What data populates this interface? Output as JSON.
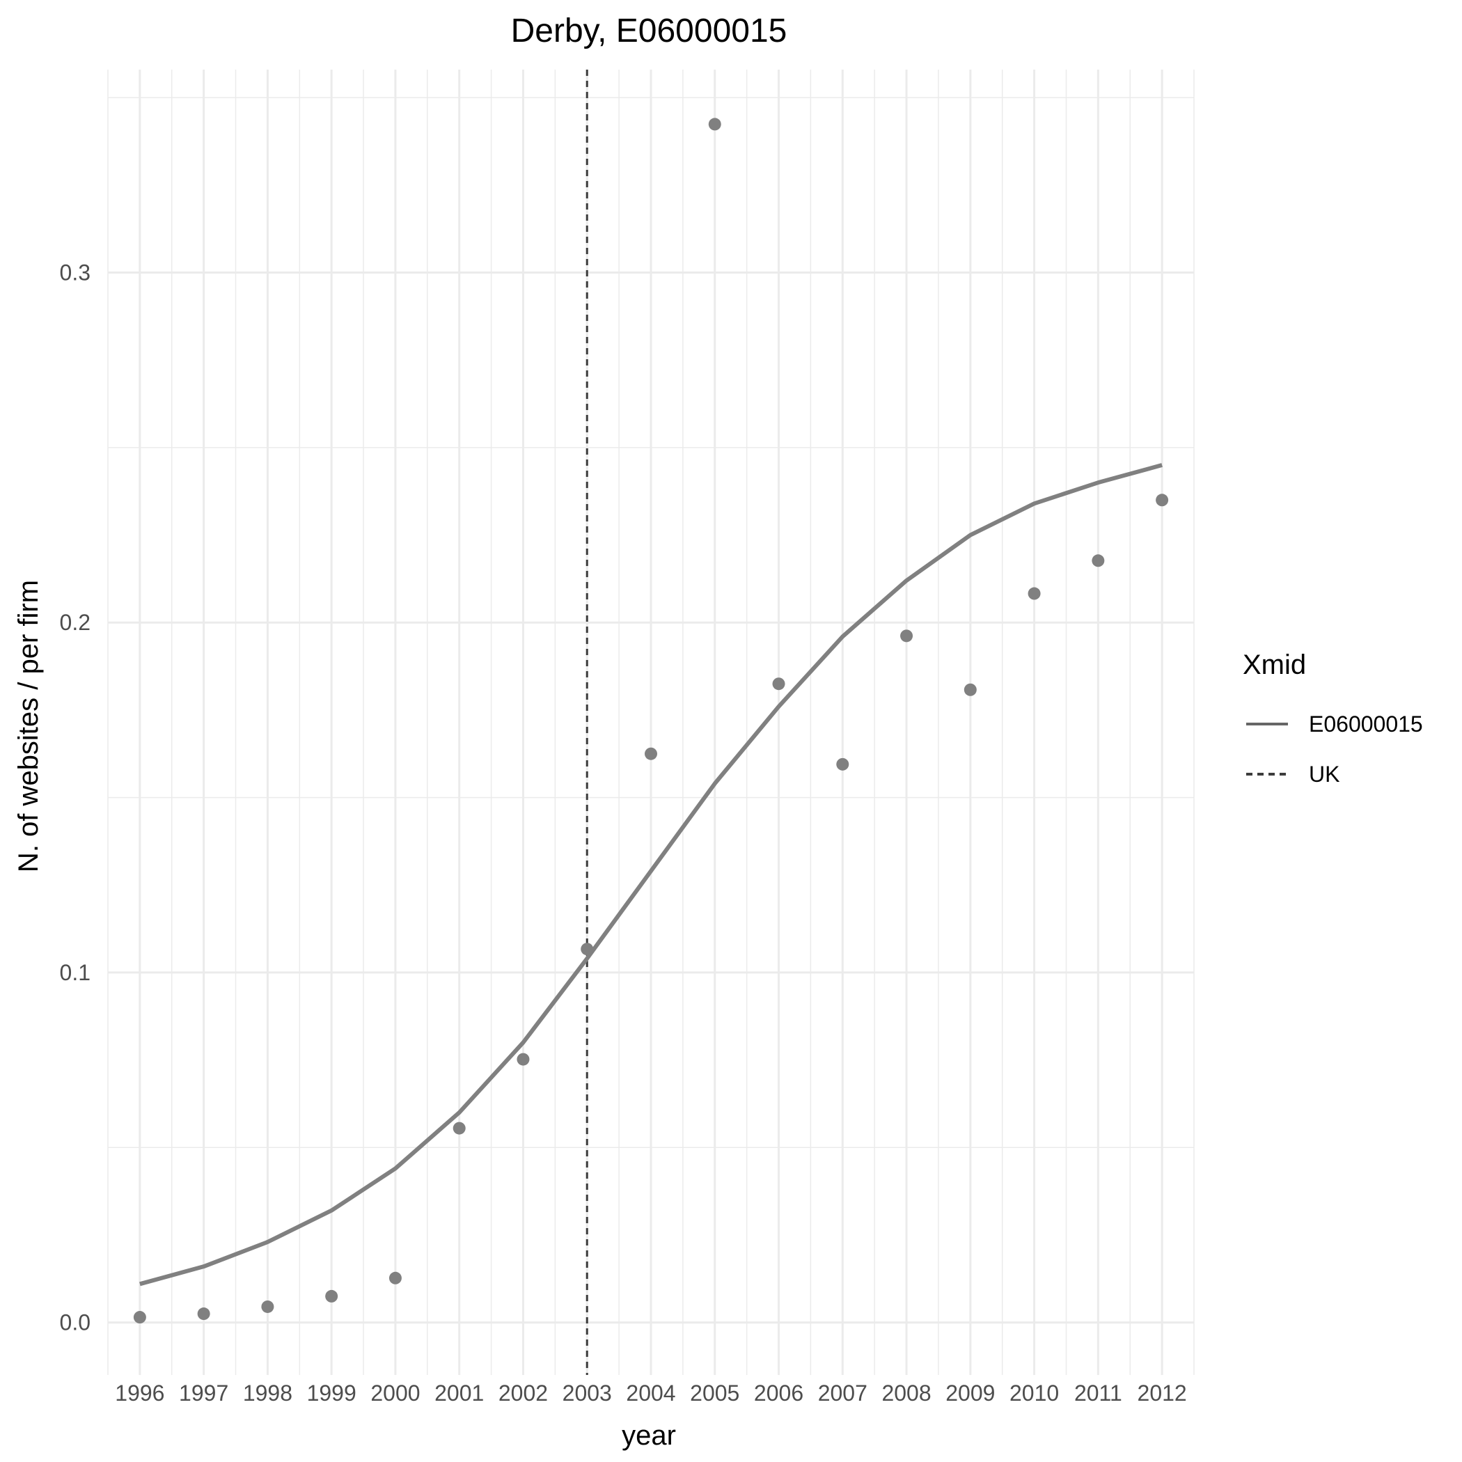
{
  "chart_data": {
    "type": "scatter",
    "title": "Derby, E06000015",
    "xlabel": "year",
    "ylabel": "N. of websites / per firm",
    "x_ticks": [
      "1996",
      "1997",
      "1998",
      "1999",
      "2000",
      "2001",
      "2002",
      "2003",
      "2004",
      "2005",
      "2006",
      "2007",
      "2008",
      "2009",
      "2010",
      "2011",
      "2012"
    ],
    "y_ticks": [
      "0.0",
      "0.1",
      "0.2",
      "0.3"
    ],
    "xlim": [
      1995.5,
      2012.5
    ],
    "ylim": [
      -0.015,
      0.358
    ],
    "grid": true,
    "points": {
      "x": [
        1996,
        1997,
        1998,
        1999,
        2000,
        2001,
        2002,
        2003,
        2004,
        2005,
        2006,
        2007,
        2008,
        2009,
        2010,
        2011,
        2012
      ],
      "y": [
        0.0015,
        0.0025,
        0.0045,
        0.0075,
        0.0127,
        0.0555,
        0.0752,
        0.1067,
        0.1625,
        0.3424,
        0.1825,
        0.1595,
        0.1962,
        0.1808,
        0.2083,
        0.2177,
        0.235
      ]
    },
    "series": [
      {
        "name": "E06000015",
        "style": "solid",
        "x": [
          1996,
          1997,
          1998,
          1999,
          2000,
          2001,
          2002,
          2003,
          2004,
          2005,
          2006,
          2007,
          2008,
          2009,
          2010,
          2011,
          2012
        ],
        "values": [
          0.011,
          0.016,
          0.023,
          0.032,
          0.044,
          0.06,
          0.08,
          0.104,
          0.129,
          0.154,
          0.176,
          0.196,
          0.212,
          0.225,
          0.234,
          0.24,
          0.245
        ]
      },
      {
        "name": "UK",
        "style": "dashed",
        "vline_x": 2003
      }
    ],
    "legend": {
      "title": "Xmid",
      "position": "right",
      "entries": [
        "E06000015",
        "UK"
      ]
    },
    "colors": {
      "points": "#808080",
      "line": "#808080",
      "uk_line": "#3d3d3d",
      "grid": "#ebebeb",
      "legend_solid": "#666666"
    }
  }
}
